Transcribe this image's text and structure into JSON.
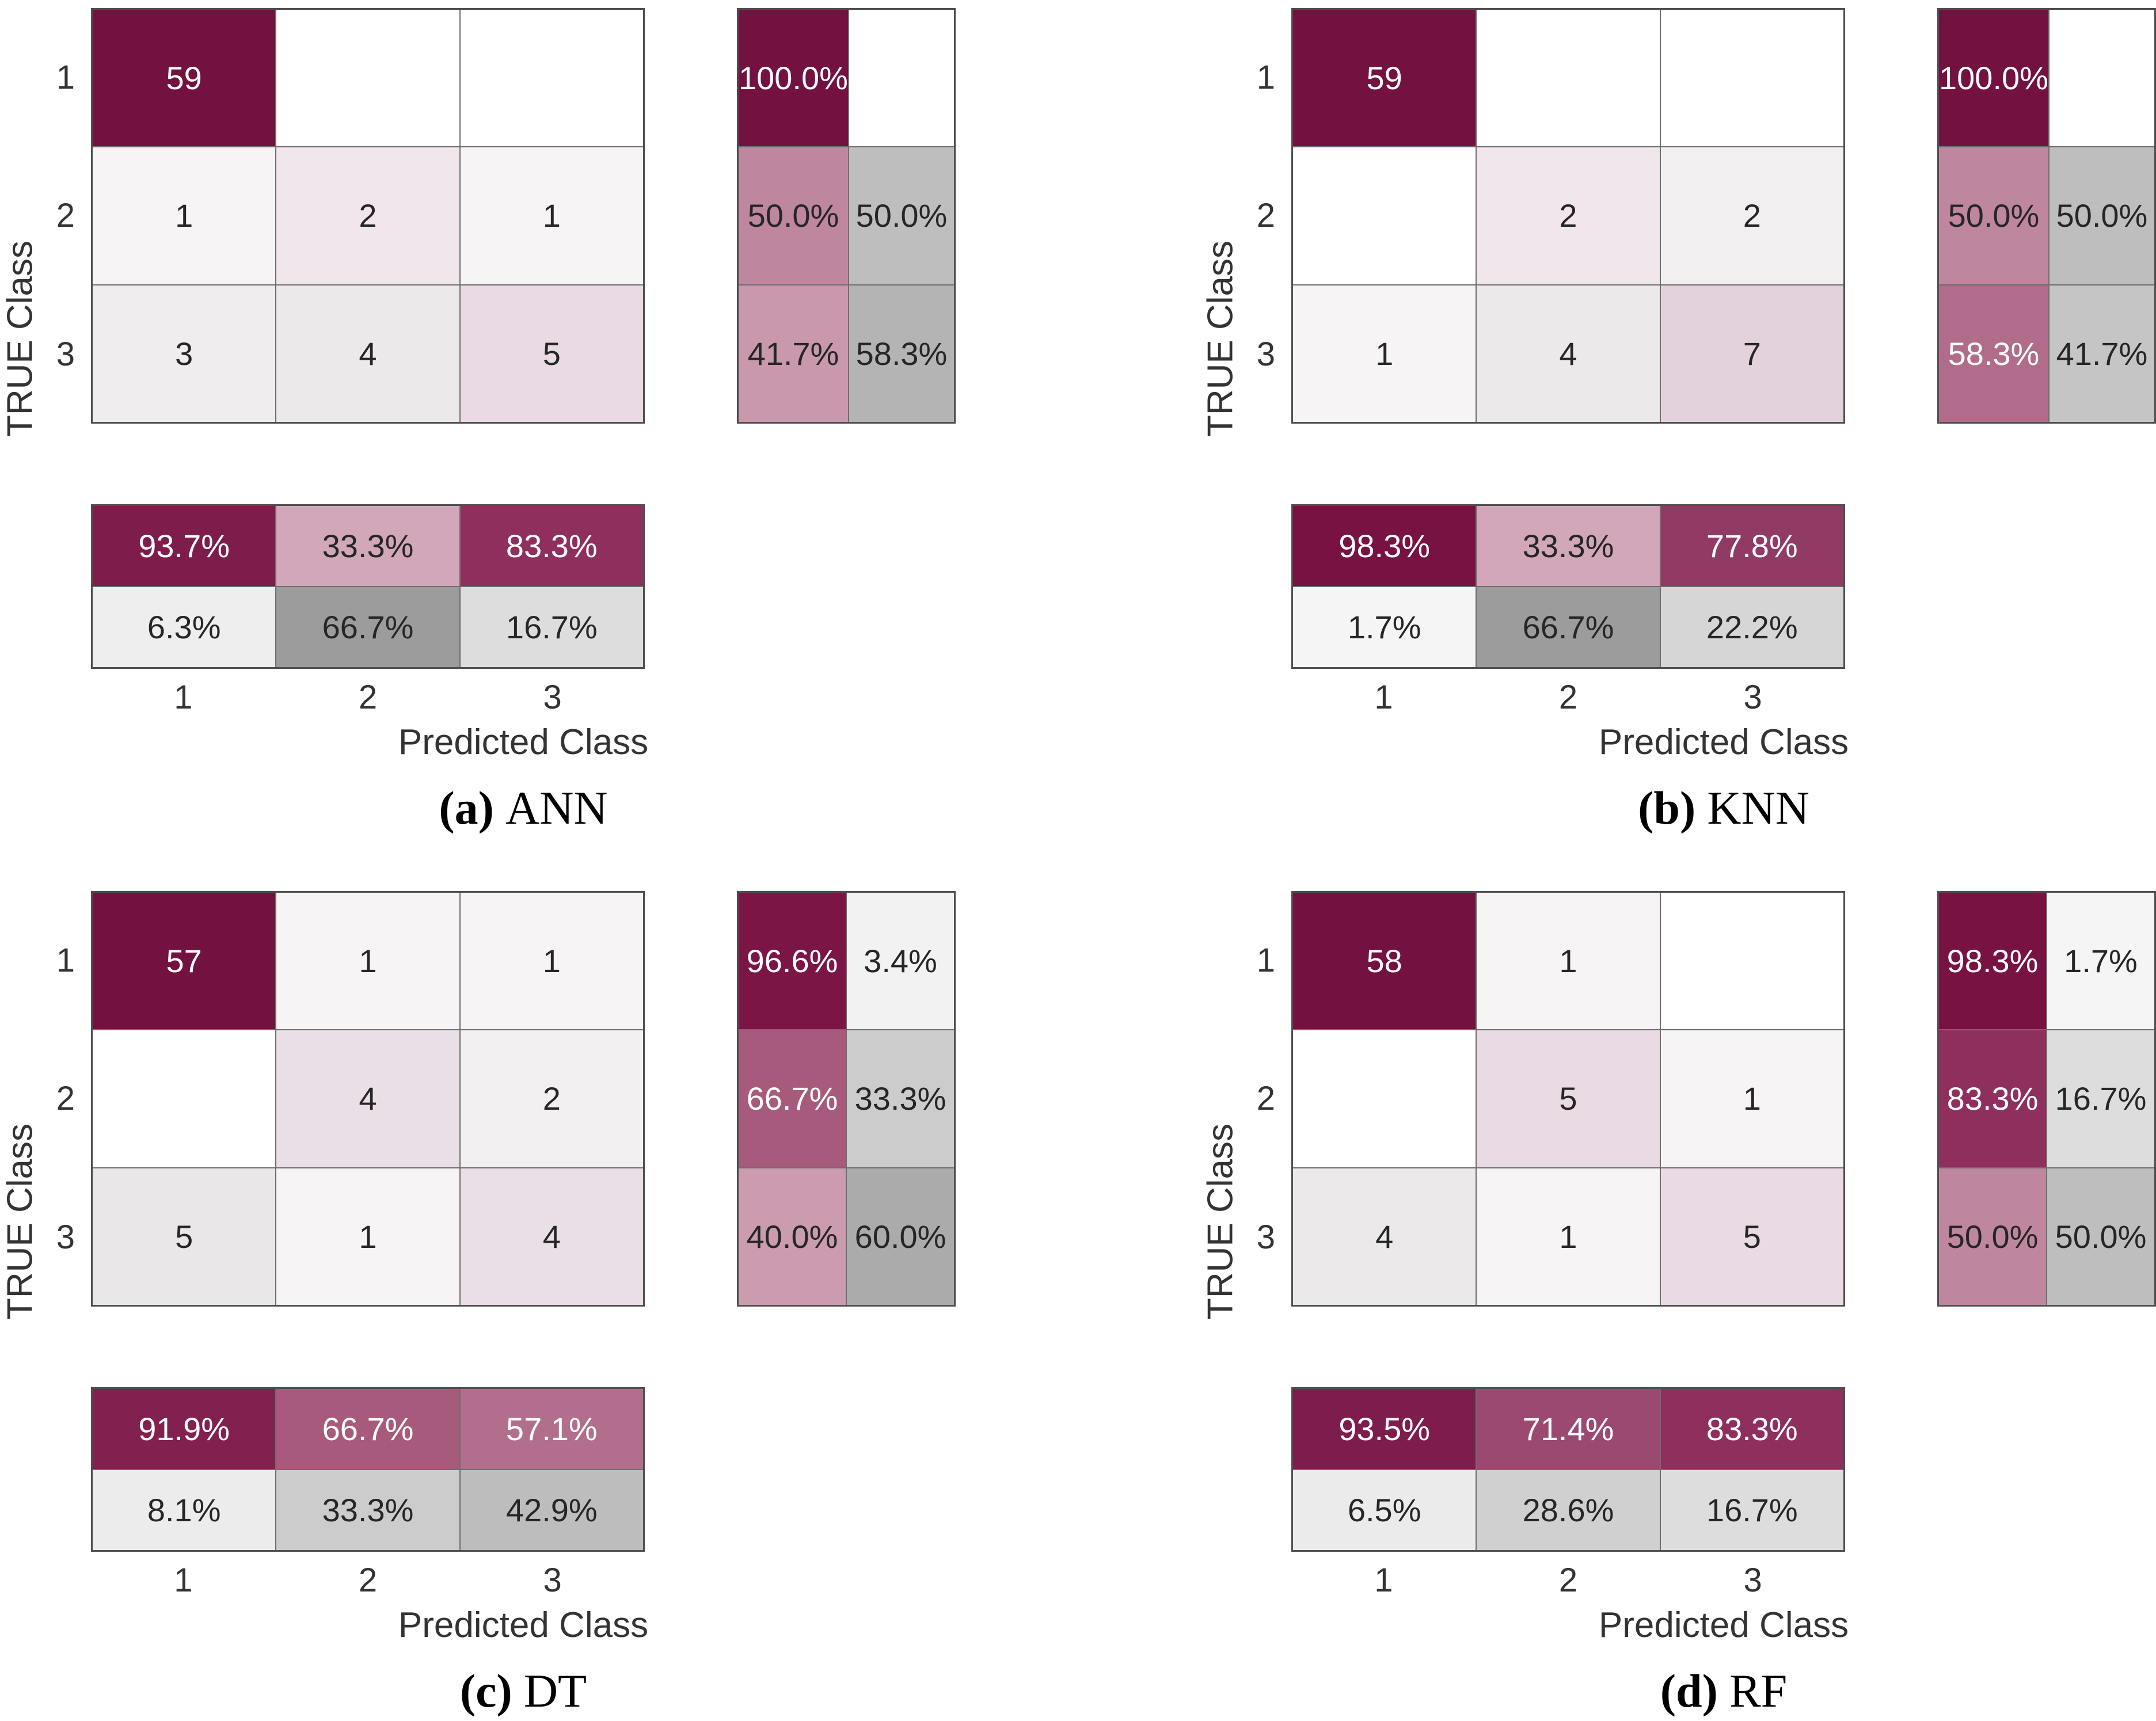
{
  "page": {
    "background": "#ffffff"
  },
  "palette": {
    "diagonal_dark": "#731140",
    "text_dark": "#262626",
    "text_white": "#ffffff",
    "grid_line": "#4f4f4f"
  },
  "chart_data": [
    {
      "type": "heatmap",
      "id": "a",
      "caption": {
        "index": "(a)",
        "label": "ANN"
      },
      "xlabel": "Predicted Class",
      "ylabel": "TRUE Class",
      "x_ticks": [
        "1",
        "2",
        "3"
      ],
      "y_ticks": [
        "1",
        "2",
        "3"
      ],
      "counts": [
        [
          59,
          0,
          0
        ],
        [
          1,
          2,
          1
        ],
        [
          3,
          4,
          5
        ]
      ],
      "row_summary_pct": [
        [
          100.0,
          null
        ],
        [
          50.0,
          50.0
        ],
        [
          41.7,
          58.3
        ]
      ],
      "col_summary_pct": [
        [
          93.7,
          33.3,
          83.3
        ],
        [
          6.3,
          66.7,
          16.7
        ]
      ],
      "matrix_cells": [
        [
          {
            "t": "59",
            "bg": "#731140",
            "fg": "w"
          },
          {
            "t": "",
            "bg": "#ffffff"
          },
          {
            "t": "",
            "bg": "#ffffff"
          }
        ],
        [
          {
            "t": "1",
            "bg": "#f6f4f5"
          },
          {
            "t": "2",
            "bg": "#f1e6ec"
          },
          {
            "t": "1",
            "bg": "#f6f4f5"
          }
        ],
        [
          {
            "t": "3",
            "bg": "#f0edef"
          },
          {
            "t": "4",
            "bg": "#ece9eb"
          },
          {
            "t": "5",
            "bg": "#e9dae3"
          }
        ]
      ],
      "row_summary_cells": [
        [
          {
            "t": "100.0%",
            "bg": "#731140",
            "fg": "w"
          },
          {
            "t": "",
            "bg": "#ffffff"
          }
        ],
        [
          {
            "t": "50.0%",
            "bg": "#bf879f"
          },
          {
            "t": "50.0%",
            "bg": "#bebebe"
          }
        ],
        [
          {
            "t": "41.7%",
            "bg": "#c998ad"
          },
          {
            "t": "58.3%",
            "bg": "#b4b4b4"
          }
        ]
      ],
      "col_summary_cells": [
        [
          {
            "t": "93.7%",
            "bg": "#7e1c4c",
            "fg": "w"
          },
          {
            "t": "33.3%",
            "bg": "#d1a7b9"
          },
          {
            "t": "83.3%",
            "bg": "#8e2f5e",
            "fg": "w"
          }
        ],
        [
          {
            "t": "6.3%",
            "bg": "#eeeeee"
          },
          {
            "t": "66.7%",
            "bg": "#9c9c9c"
          },
          {
            "t": "16.7%",
            "bg": "#dddddd"
          }
        ]
      ]
    },
    {
      "type": "heatmap",
      "id": "b",
      "caption": {
        "index": "(b)",
        "label": "KNN"
      },
      "xlabel": "Predicted Class",
      "ylabel": "TRUE Class",
      "x_ticks": [
        "1",
        "2",
        "3"
      ],
      "y_ticks": [
        "1",
        "2",
        "3"
      ],
      "counts": [
        [
          59,
          0,
          0
        ],
        [
          0,
          2,
          2
        ],
        [
          1,
          4,
          7
        ]
      ],
      "row_summary_pct": [
        [
          100.0,
          null
        ],
        [
          50.0,
          50.0
        ],
        [
          58.3,
          41.7
        ]
      ],
      "col_summary_pct": [
        [
          98.3,
          33.3,
          77.8
        ],
        [
          1.7,
          66.7,
          22.2
        ]
      ],
      "matrix_cells": [
        [
          {
            "t": "59",
            "bg": "#731140",
            "fg": "w"
          },
          {
            "t": "",
            "bg": "#ffffff"
          },
          {
            "t": "",
            "bg": "#ffffff"
          }
        ],
        [
          {
            "t": "",
            "bg": "#ffffff"
          },
          {
            "t": "2",
            "bg": "#f1e6ec"
          },
          {
            "t": "2",
            "bg": "#f2eff1"
          }
        ],
        [
          {
            "t": "1",
            "bg": "#f6f4f5"
          },
          {
            "t": "4",
            "bg": "#ece9eb"
          },
          {
            "t": "7",
            "bg": "#e3d2dc"
          }
        ]
      ],
      "row_summary_cells": [
        [
          {
            "t": "100.0%",
            "bg": "#731140",
            "fg": "w"
          },
          {
            "t": "",
            "bg": "#ffffff"
          }
        ],
        [
          {
            "t": "50.0%",
            "bg": "#bf879f"
          },
          {
            "t": "50.0%",
            "bg": "#bebebe"
          }
        ],
        [
          {
            "t": "58.3%",
            "bg": "#b06c8a",
            "fg": "w"
          },
          {
            "t": "41.7%",
            "bg": "#c5c5c5"
          }
        ]
      ],
      "col_summary_cells": [
        [
          {
            "t": "98.3%",
            "bg": "#771243",
            "fg": "w"
          },
          {
            "t": "33.3%",
            "bg": "#d1a7b9"
          },
          {
            "t": "77.8%",
            "bg": "#913a64",
            "fg": "w"
          }
        ],
        [
          {
            "t": "1.7%",
            "bg": "#f5f5f5"
          },
          {
            "t": "66.7%",
            "bg": "#9c9c9c"
          },
          {
            "t": "22.2%",
            "bg": "#d6d6d6"
          }
        ]
      ]
    },
    {
      "type": "heatmap",
      "id": "c",
      "caption": {
        "index": "(c)",
        "label": "DT"
      },
      "xlabel": "Predicted Class",
      "ylabel": "TRUE Class",
      "x_ticks": [
        "1",
        "2",
        "3"
      ],
      "y_ticks": [
        "1",
        "2",
        "3"
      ],
      "counts": [
        [
          57,
          1,
          1
        ],
        [
          0,
          4,
          2
        ],
        [
          5,
          1,
          4
        ]
      ],
      "row_summary_pct": [
        [
          96.6,
          3.4
        ],
        [
          66.7,
          33.3
        ],
        [
          40.0,
          60.0
        ]
      ],
      "col_summary_pct": [
        [
          91.9,
          66.7,
          57.1
        ],
        [
          8.1,
          33.3,
          42.9
        ]
      ],
      "matrix_cells": [
        [
          {
            "t": "57",
            "bg": "#731140",
            "fg": "w"
          },
          {
            "t": "1",
            "bg": "#f6f4f5"
          },
          {
            "t": "1",
            "bg": "#f6f4f5"
          }
        ],
        [
          {
            "t": "",
            "bg": "#ffffff"
          },
          {
            "t": "4",
            "bg": "#ebdfe7"
          },
          {
            "t": "2",
            "bg": "#f2eff1"
          }
        ],
        [
          {
            "t": "5",
            "bg": "#eae7e9"
          },
          {
            "t": "1",
            "bg": "#f6f4f5"
          },
          {
            "t": "4",
            "bg": "#ebdfe7"
          }
        ]
      ],
      "row_summary_cells": [
        [
          {
            "t": "96.6%",
            "bg": "#7b1546",
            "fg": "w"
          },
          {
            "t": "3.4%",
            "bg": "#f2f2f2"
          }
        ],
        [
          {
            "t": "66.7%",
            "bg": "#a75a7c",
            "fg": "w"
          },
          {
            "t": "33.3%",
            "bg": "#cccccc"
          }
        ],
        [
          {
            "t": "40.0%",
            "bg": "#cb9bb0"
          },
          {
            "t": "60.0%",
            "bg": "#ababab"
          }
        ]
      ],
      "col_summary_cells": [
        [
          {
            "t": "91.9%",
            "bg": "#82204f",
            "fg": "w"
          },
          {
            "t": "66.7%",
            "bg": "#a75a7c",
            "fg": "w"
          },
          {
            "t": "57.1%",
            "bg": "#b26f8d",
            "fg": "w"
          }
        ],
        [
          {
            "t": "8.1%",
            "bg": "#ececec"
          },
          {
            "t": "33.3%",
            "bg": "#cccccc"
          },
          {
            "t": "42.9%",
            "bg": "#bdbdbd"
          }
        ]
      ]
    },
    {
      "type": "heatmap",
      "id": "d",
      "caption": {
        "index": "(d)",
        "label": "RF"
      },
      "xlabel": "Predicted Class",
      "ylabel": "TRUE Class",
      "x_ticks": [
        "1",
        "2",
        "3"
      ],
      "y_ticks": [
        "1",
        "2",
        "3"
      ],
      "counts": [
        [
          58,
          1,
          0
        ],
        [
          0,
          5,
          1
        ],
        [
          4,
          1,
          5
        ]
      ],
      "row_summary_pct": [
        [
          98.3,
          1.7
        ],
        [
          83.3,
          16.7
        ],
        [
          50.0,
          50.0
        ]
      ],
      "col_summary_pct": [
        [
          93.5,
          71.4,
          83.3
        ],
        [
          6.5,
          28.6,
          16.7
        ]
      ],
      "matrix_cells": [
        [
          {
            "t": "58",
            "bg": "#731140",
            "fg": "w"
          },
          {
            "t": "1",
            "bg": "#f6f4f5"
          },
          {
            "t": "",
            "bg": "#ffffff"
          }
        ],
        [
          {
            "t": "",
            "bg": "#ffffff"
          },
          {
            "t": "5",
            "bg": "#e9dae3"
          },
          {
            "t": "1",
            "bg": "#f6f4f5"
          }
        ],
        [
          {
            "t": "4",
            "bg": "#ece9eb"
          },
          {
            "t": "1",
            "bg": "#f6f4f5"
          },
          {
            "t": "5",
            "bg": "#e9dae3"
          }
        ]
      ],
      "row_summary_cells": [
        [
          {
            "t": "98.3%",
            "bg": "#771243",
            "fg": "w"
          },
          {
            "t": "1.7%",
            "bg": "#f5f5f5"
          }
        ],
        [
          {
            "t": "83.3%",
            "bg": "#8e2f5e",
            "fg": "w"
          },
          {
            "t": "16.7%",
            "bg": "#dddddd"
          }
        ],
        [
          {
            "t": "50.0%",
            "bg": "#bf879f"
          },
          {
            "t": "50.0%",
            "bg": "#bebebe"
          }
        ]
      ],
      "col_summary_cells": [
        [
          {
            "t": "93.5%",
            "bg": "#7e1d4d",
            "fg": "w"
          },
          {
            "t": "71.4%",
            "bg": "#9b4971",
            "fg": "w"
          },
          {
            "t": "83.3%",
            "bg": "#8e2f5e",
            "fg": "w"
          }
        ],
        [
          {
            "t": "6.5%",
            "bg": "#ebebeb"
          },
          {
            "t": "28.6%",
            "bg": "#d0d0d0"
          },
          {
            "t": "16.7%",
            "bg": "#dddddd"
          }
        ]
      ]
    }
  ]
}
